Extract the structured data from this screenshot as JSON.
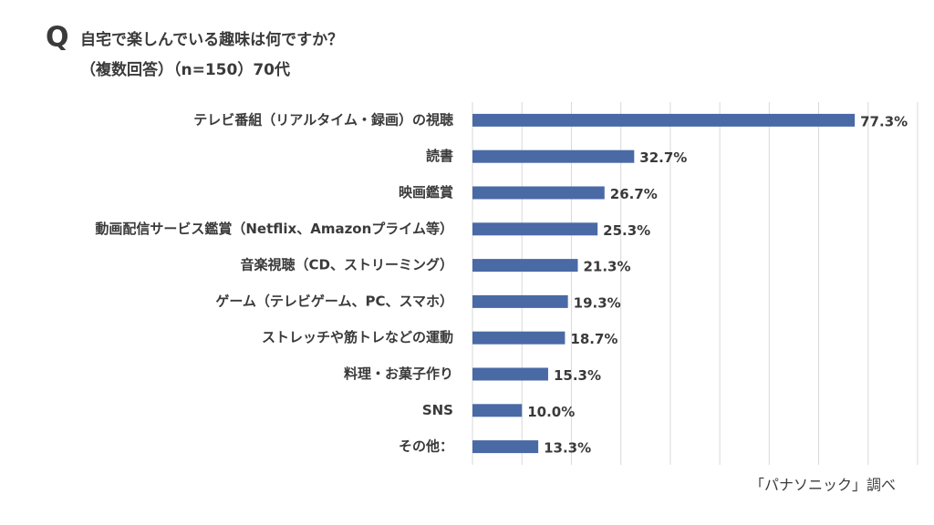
{
  "chart_data": {
    "type": "bar",
    "orientation": "horizontal",
    "question_mark": "Q",
    "title": "自宅で楽しんでいる趣味は何ですか？",
    "subtitle": "（複数回答）（n=150）70代",
    "source": "「パナソニック」調べ",
    "categories": [
      "テレビ番組（リアルタイム・録画）の視聴",
      "読書",
      "映画鑑賞",
      "動画配信サービス鑑賞（Netflix、Amazonプライム等）",
      "音楽視聴（CD、ストリーミング）",
      "ゲーム（テレビゲーム、PC、スマホ）",
      "ストレッチや筋トレなどの運動",
      "料理・お菓子作り",
      "SNS",
      "その他："
    ],
    "values": [
      77.3,
      32.7,
      26.7,
      25.3,
      21.3,
      19.3,
      18.7,
      15.3,
      10.0,
      13.3
    ],
    "value_labels": [
      "77.3%",
      "32.7%",
      "26.7%",
      "25.3%",
      "21.3%",
      "19.3%",
      "18.7%",
      "15.3%",
      "10.0%",
      "13.3%"
    ],
    "color": "#4a6aa6",
    "xlim": [
      0,
      90
    ],
    "xticks": [
      0,
      10,
      20,
      30,
      40,
      50,
      60,
      70,
      80,
      90
    ],
    "grid": true
  }
}
